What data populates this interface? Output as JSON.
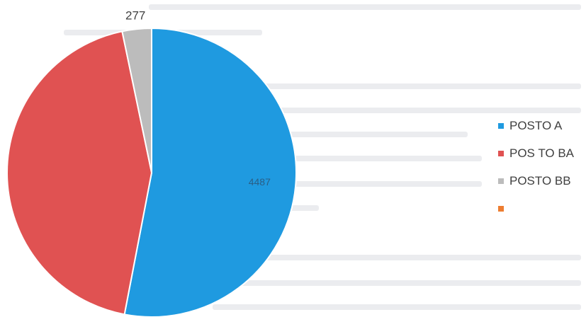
{
  "chart_data": {
    "type": "pie",
    "slices": [
      {
        "label": "POSTO A",
        "value": 4487,
        "color": "#1f9ae0",
        "data_label": "4487"
      },
      {
        "label": "POS TO BA",
        "value": 3700,
        "color": "#e05252",
        "data_label": ""
      },
      {
        "label": "POSTO BB",
        "value": 277,
        "color": "#bcbcbc",
        "data_label": "277"
      },
      {
        "label": "",
        "value": 0,
        "color": "#ed7d31",
        "data_label": ""
      }
    ],
    "legend_position": "right"
  }
}
